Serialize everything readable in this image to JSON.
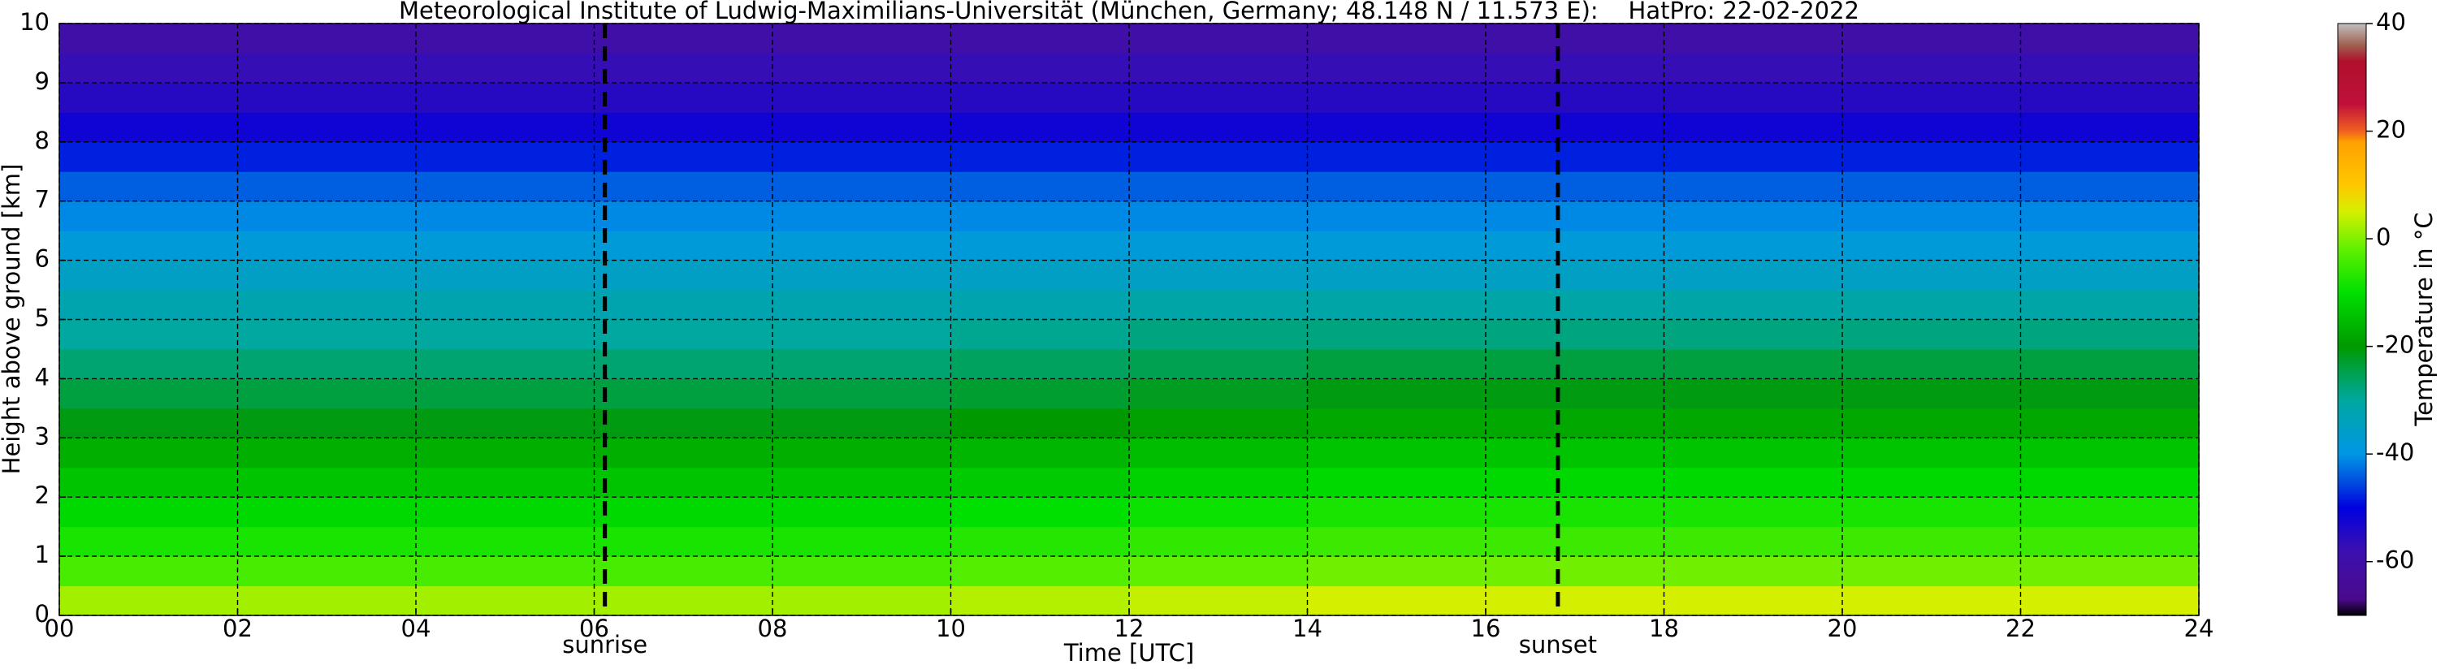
{
  "chart_data": {
    "type": "heatmap",
    "title": "Meteorological Institute of Ludwig-Maximilians-Universität (München, Germany; 48.148 N / 11.573 E):    HatPro: 22-02-2022",
    "x_label": "Time [UTC]",
    "y_label": "Height above ground [km]",
    "colorbar_label": "Temperature in °C",
    "x": [
      0,
      2,
      4,
      6,
      8,
      10,
      12,
      14,
      16,
      18,
      20,
      22,
      24
    ],
    "y": [
      0,
      0.5,
      1,
      1.5,
      2,
      2.5,
      3,
      3.5,
      4,
      4.5,
      5,
      5.5,
      6,
      6.5,
      7,
      7.5,
      8,
      8.5,
      9,
      9.5,
      10
    ],
    "z": [
      [
        2,
        2,
        2,
        2,
        2,
        3,
        4,
        5,
        5,
        5,
        5,
        5
      ],
      [
        -4,
        -4,
        -4,
        -4,
        -4,
        -3,
        -2,
        -1,
        -1,
        -1,
        -1,
        -1
      ],
      [
        -8,
        -8,
        -8,
        -8,
        -8,
        -7,
        -6,
        -5,
        -5,
        -5,
        -5,
        -5
      ],
      [
        -11,
        -11,
        -11,
        -11,
        -11,
        -10,
        -9,
        -8,
        -8,
        -8,
        -8,
        -8
      ],
      [
        -14,
        -14,
        -14,
        -14,
        -14,
        -13,
        -12,
        -11,
        -11,
        -11,
        -11,
        -11
      ],
      [
        -17,
        -17,
        -17,
        -17,
        -17,
        -16,
        -15,
        -14,
        -14,
        -14,
        -14,
        -14
      ],
      [
        -21,
        -21,
        -21,
        -21,
        -21,
        -20,
        -19,
        -18,
        -18,
        -18,
        -18,
        -18
      ],
      [
        -24,
        -24,
        -24,
        -24,
        -24,
        -23,
        -22,
        -21,
        -21,
        -21,
        -21,
        -21
      ],
      [
        -27,
        -27,
        -27,
        -27,
        -27,
        -26,
        -25,
        -24,
        -24,
        -24,
        -24,
        -24
      ],
      [
        -30,
        -30,
        -30,
        -30,
        -30,
        -29,
        -28,
        -28,
        -28,
        -28,
        -28,
        -28
      ],
      [
        -32,
        -32,
        -32,
        -32,
        -32,
        -32,
        -31,
        -31,
        -31,
        -31,
        -31,
        -31
      ],
      [
        -35,
        -35,
        -35,
        -35,
        -35,
        -35,
        -35,
        -35,
        -35,
        -35,
        -35,
        -35
      ],
      [
        -38,
        -38,
        -38,
        -38,
        -38,
        -38,
        -38,
        -38,
        -38,
        -38,
        -38,
        -38
      ],
      [
        -41,
        -41,
        -41,
        -41,
        -41,
        -41,
        -41,
        -41,
        -41,
        -41,
        -41,
        -41
      ],
      [
        -44,
        -44,
        -44,
        -44,
        -44,
        -44,
        -44,
        -44,
        -44,
        -44,
        -44,
        -44
      ],
      [
        -48,
        -48,
        -48,
        -48,
        -48,
        -48,
        -48,
        -48,
        -48,
        -48,
        -48,
        -48
      ],
      [
        -52,
        -52,
        -52,
        -52,
        -52,
        -52,
        -52,
        -52,
        -52,
        -52,
        -52,
        -52
      ],
      [
        -55,
        -55,
        -55,
        -55,
        -55,
        -55,
        -55,
        -55,
        -55,
        -55,
        -55,
        -55
      ],
      [
        -57,
        -57,
        -57,
        -57,
        -57,
        -57,
        -57,
        -57,
        -57,
        -57,
        -57,
        -57
      ],
      [
        -60,
        -60,
        -60,
        -60,
        -60,
        -60,
        -60,
        -60,
        -60,
        -60,
        -60,
        -60
      ]
    ],
    "xlim": [
      0,
      24
    ],
    "xticks": [
      {
        "value": 0,
        "label": "00"
      },
      {
        "value": 2,
        "label": "02"
      },
      {
        "value": 4,
        "label": "04"
      },
      {
        "value": 6,
        "label": "06"
      },
      {
        "value": 8,
        "label": "08"
      },
      10,
      12,
      14,
      16,
      18,
      20,
      22,
      24
    ],
    "ylim": [
      0,
      10
    ],
    "yticks": [
      0,
      1,
      2,
      3,
      4,
      5,
      6,
      7,
      8,
      9,
      10
    ],
    "grid": true,
    "clim": [
      -70,
      40
    ],
    "cticks": [
      -60,
      -40,
      -20,
      0,
      20,
      40
    ],
    "colormap": [
      {
        "value": -70,
        "color": "#000000"
      },
      {
        "value": -67,
        "color": "#4b0a8c"
      },
      {
        "value": -58,
        "color": "#3c10b0"
      },
      {
        "value": -50,
        "color": "#0000e0"
      },
      {
        "value": -45,
        "color": "#0050e0"
      },
      {
        "value": -40,
        "color": "#0096e6"
      },
      {
        "value": -30,
        "color": "#00a8a0"
      },
      {
        "value": -20,
        "color": "#009a00"
      },
      {
        "value": -10,
        "color": "#00e000"
      },
      {
        "value": -2,
        "color": "#5ff000"
      },
      {
        "value": 5,
        "color": "#d4f000"
      },
      {
        "value": 10,
        "color": "#ffc800"
      },
      {
        "value": 18,
        "color": "#ffa000"
      },
      {
        "value": 20,
        "color": "#f06020"
      },
      {
        "value": 25,
        "color": "#c0103a"
      },
      {
        "value": 33,
        "color": "#b0102a"
      },
      {
        "value": 36,
        "color": "#a06050"
      },
      {
        "value": 40,
        "color": "#c0c0c0"
      }
    ],
    "annotations": [
      {
        "text": "sunrise",
        "x": 6.12
      },
      {
        "text": "sunset",
        "x": 16.81
      }
    ]
  }
}
